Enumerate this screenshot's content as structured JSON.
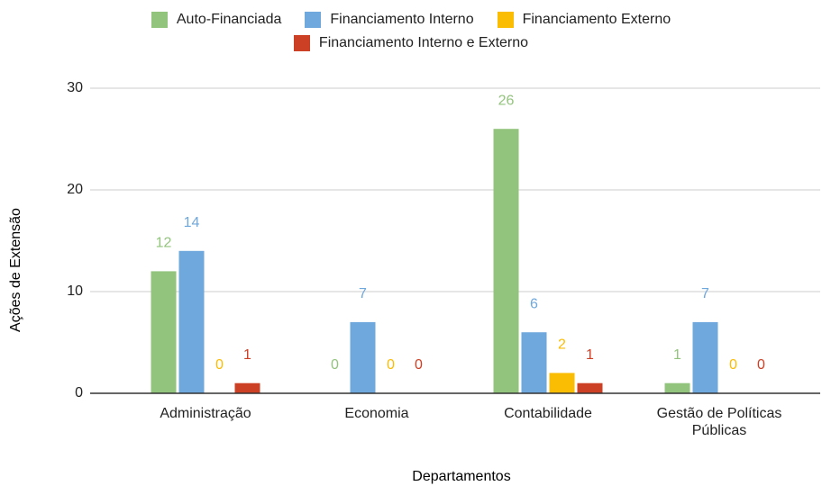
{
  "chart_data": {
    "type": "bar",
    "categories": [
      "Administração",
      "Economia",
      "Contabilidade",
      "Gestão de Políticas Públicas"
    ],
    "series": [
      {
        "name": "Auto-Financiada",
        "color": "#93c47d",
        "values": [
          12,
          0,
          26,
          1
        ]
      },
      {
        "name": "Financiamento Interno",
        "color": "#6fa8dc",
        "values": [
          14,
          7,
          6,
          7
        ]
      },
      {
        "name": "Financiamento Externo",
        "color": "#fbbc04",
        "values": [
          0,
          0,
          2,
          0
        ]
      },
      {
        "name": "Financiamento Interno e Externo",
        "color": "#cc4125",
        "values": [
          1,
          0,
          1,
          0
        ]
      }
    ],
    "x_label": "Departamentos",
    "y_label": "Ações de Extensão",
    "ylim": [
      0,
      30
    ],
    "yticks": [
      0,
      10,
      20,
      30
    ],
    "grid": true,
    "legend": "top"
  }
}
